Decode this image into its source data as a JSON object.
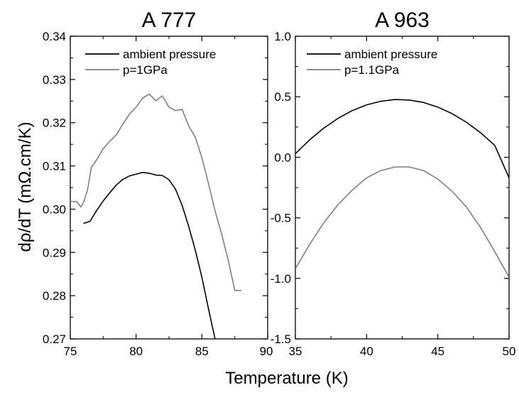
{
  "figure": {
    "xlabel": "Temperature (K)",
    "ylabel": "dρ/dT (mΩ.cm/K)"
  },
  "chart_data": [
    {
      "type": "line",
      "title": "A 777",
      "xlabel": "Temperature (K)",
      "ylabel": "dρ/dT (mΩ.cm/K)",
      "xlim": [
        75,
        90
      ],
      "ylim": [
        0.27,
        0.34
      ],
      "xticks": [
        75,
        80,
        85,
        90
      ],
      "yticks": [
        0.27,
        0.28,
        0.29,
        0.3,
        0.31,
        0.32,
        0.33,
        0.34
      ],
      "ytick_labels": [
        "0.27",
        "0.28",
        "0.29",
        "0.30",
        "0.31",
        "0.32",
        "0.33",
        "0.34"
      ],
      "grid": false,
      "legend": "top",
      "series": [
        {
          "name": "ambient pressure",
          "color": "#000000",
          "x": [
            76.0,
            76.5,
            77.0,
            77.5,
            78.0,
            78.5,
            79.0,
            79.5,
            80.0,
            80.5,
            81.0,
            81.5,
            82.0,
            82.5,
            83.0,
            83.5,
            84.0,
            84.5,
            85.0,
            85.5,
            86.0
          ],
          "y": [
            0.2967,
            0.2972,
            0.2997,
            0.3019,
            0.3038,
            0.3056,
            0.3069,
            0.3077,
            0.3081,
            0.3085,
            0.3083,
            0.3079,
            0.3078,
            0.3068,
            0.3046,
            0.3009,
            0.296,
            0.2905,
            0.2843,
            0.277,
            0.27
          ]
        },
        {
          "name": "p=1GPa",
          "color": "#808080",
          "x": [
            75.0,
            75.5,
            75.8,
            76.0,
            76.3,
            76.6,
            77.0,
            77.5,
            78.0,
            78.5,
            79.0,
            79.5,
            80.0,
            80.5,
            81.0,
            81.5,
            82.0,
            82.5,
            83.0,
            83.5,
            84.0,
            84.5,
            85.0,
            85.5,
            86.0,
            86.5,
            87.0,
            87.5,
            88.0
          ],
          "y": [
            0.3018,
            0.3017,
            0.3005,
            0.3015,
            0.3043,
            0.3097,
            0.3114,
            0.314,
            0.3157,
            0.3172,
            0.3197,
            0.322,
            0.3236,
            0.3257,
            0.3266,
            0.3251,
            0.3262,
            0.3236,
            0.3228,
            0.3231,
            0.3192,
            0.3167,
            0.3119,
            0.306,
            0.2996,
            0.2943,
            0.2882,
            0.2812,
            0.2812
          ]
        }
      ]
    },
    {
      "type": "line",
      "title": "A 963",
      "xlabel": "Temperature (K)",
      "xlim": [
        35,
        50
      ],
      "ylim": [
        -1.5,
        1.0
      ],
      "xticks": [
        35,
        40,
        45,
        50
      ],
      "yticks": [
        -1.5,
        -1.0,
        -0.5,
        0.0,
        0.5,
        1.0
      ],
      "ytick_labels": [
        "-1.5",
        "-1.0",
        "-0.5",
        "0.0",
        "0.5",
        "1.0"
      ],
      "grid": false,
      "legend": "top",
      "series": [
        {
          "name": "ambient pressure",
          "color": "#000000",
          "x": [
            35,
            36,
            37,
            38,
            39,
            40,
            41,
            42,
            43,
            44,
            45,
            46,
            47,
            48,
            49,
            50
          ],
          "y": [
            0.03,
            0.144,
            0.241,
            0.322,
            0.386,
            0.433,
            0.463,
            0.477,
            0.473,
            0.453,
            0.415,
            0.361,
            0.29,
            0.203,
            0.098,
            -0.17
          ]
        },
        {
          "name": "p=1.1GPa",
          "color": "#808080",
          "x": [
            35,
            36,
            37,
            38,
            39,
            40,
            41,
            42,
            43,
            44,
            45,
            46,
            47,
            48,
            49,
            50
          ],
          "y": [
            -0.92,
            -0.72,
            -0.54,
            -0.39,
            -0.27,
            -0.17,
            -0.11,
            -0.08,
            -0.08,
            -0.11,
            -0.18,
            -0.28,
            -0.41,
            -0.58,
            -0.78,
            -0.99
          ]
        }
      ]
    }
  ]
}
